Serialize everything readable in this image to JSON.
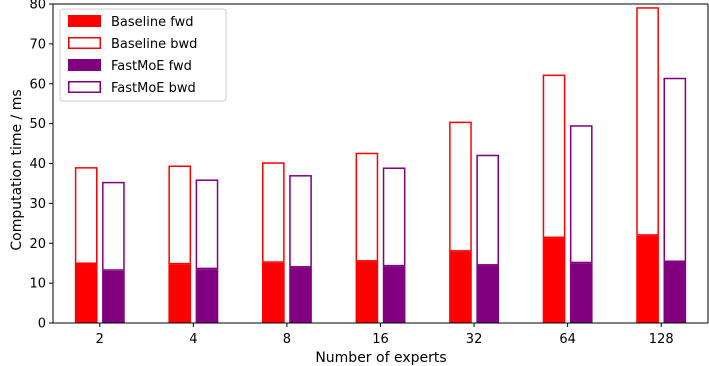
{
  "chart_data": {
    "type": "bar",
    "stacked": true,
    "categories": [
      "2",
      "4",
      "8",
      "16",
      "32",
      "64",
      "128"
    ],
    "series": [
      {
        "name": "Baseline fwd",
        "group": "Baseline",
        "part": "fwd",
        "style": "filled",
        "color": "#ff0000",
        "values": [
          14.8,
          14.7,
          15.1,
          15.4,
          17.9,
          21.3,
          21.9
        ]
      },
      {
        "name": "Baseline bwd",
        "group": "Baseline",
        "part": "bwd",
        "style": "outline",
        "color": "#ff0000",
        "values": [
          24.3,
          24.8,
          25.2,
          27.3,
          32.6,
          41.0,
          57.3
        ]
      },
      {
        "name": "FastMoE fwd",
        "group": "FastMoE",
        "part": "fwd",
        "style": "filled",
        "color": "#800080",
        "values": [
          13.1,
          13.5,
          13.9,
          14.2,
          14.4,
          15.0,
          15.3
        ]
      },
      {
        "name": "FastMoE bwd",
        "group": "FastMoE",
        "part": "bwd",
        "style": "outline",
        "color": "#800080",
        "values": [
          22.3,
          22.5,
          23.2,
          24.8,
          27.8,
          34.6,
          46.2
        ]
      }
    ],
    "xlabel": "Number of experts",
    "ylabel": "Computation time / ms",
    "ylim": [
      0,
      80
    ],
    "yticks": [
      0,
      10,
      20,
      30,
      40,
      50,
      60,
      70,
      80
    ],
    "grid": false,
    "legend_position": "top-left"
  }
}
